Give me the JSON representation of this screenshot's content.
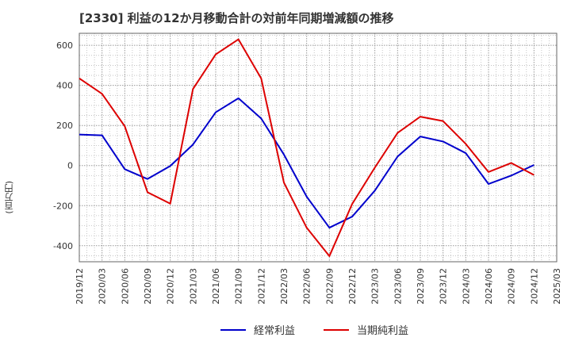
{
  "chart_data": {
    "type": "line",
    "title": "[2330]  利益の12か月移動合計の対前年同期増減額の推移",
    "ylabel": "(百万円)",
    "xlabel": "",
    "ylim": [
      -480,
      660
    ],
    "yticks": [
      600,
      400,
      200,
      0,
      -200,
      -400
    ],
    "categories": [
      "2019/12",
      "2020/03",
      "2020/06",
      "2020/09",
      "2020/12",
      "2021/03",
      "2021/06",
      "2021/09",
      "2021/12",
      "2022/03",
      "2022/06",
      "2022/09",
      "2022/12",
      "2023/03",
      "2023/06",
      "2023/09",
      "2023/12",
      "2024/03",
      "2024/06",
      "2024/09",
      "2024/12",
      "2025/03"
    ],
    "series": [
      {
        "name": "経常利益",
        "color": "#0000cc",
        "values": [
          155,
          151,
          -18,
          -67,
          -2,
          105,
          266,
          336,
          235,
          55,
          -155,
          -310,
          -255,
          -125,
          45,
          145,
          120,
          62,
          -92,
          -50,
          3,
          null
        ]
      },
      {
        "name": "当期純利益",
        "color": "#dd0000",
        "values": [
          435,
          358,
          196,
          -133,
          -190,
          382,
          555,
          630,
          435,
          -85,
          -310,
          -452,
          -192,
          -10,
          163,
          244,
          222,
          108,
          -32,
          13,
          -47,
          null
        ]
      }
    ],
    "legend_position": "bottom-center",
    "grid": true
  }
}
